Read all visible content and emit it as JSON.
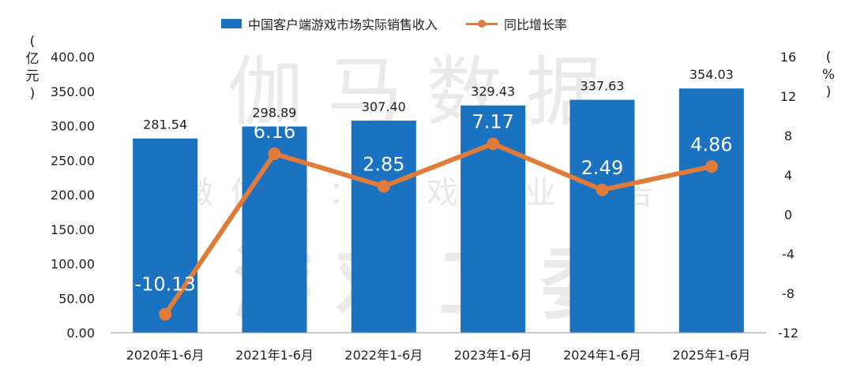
{
  "chart_data": {
    "type": "bar",
    "categories": [
      "2020年1-6月",
      "2021年1-6月",
      "2022年1-6月",
      "2023年1-6月",
      "2024年1-6月",
      "2025年1-6月"
    ],
    "series": [
      {
        "name": "中国客户端游戏市场实际销售收入",
        "type": "bar",
        "axis": "left",
        "values": [
          281.54,
          298.89,
          307.4,
          329.43,
          337.63,
          354.03
        ],
        "labels": [
          "281.54",
          "298.89",
          "307.40",
          "329.43",
          "337.63",
          "354.03"
        ],
        "color": "#1a72c0"
      },
      {
        "name": "同比增长率",
        "type": "line",
        "axis": "right",
        "values": [
          -10.13,
          6.16,
          2.85,
          7.17,
          2.49,
          4.86
        ],
        "labels": [
          "-10.13",
          "6.16",
          "2.85",
          "7.17",
          "2.49",
          "4.86"
        ],
        "color": "#e07b3a"
      }
    ],
    "yleft": {
      "unit": [
        "(",
        "亿",
        "元",
        ")"
      ],
      "ylim": [
        0,
        400
      ],
      "ticks": [
        "0.00",
        "50.00",
        "100.00",
        "150.00",
        "200.00",
        "250.00",
        "300.00",
        "350.00",
        "400.00"
      ]
    },
    "yright": {
      "unit": [
        "(",
        "%",
        ")"
      ],
      "ylim": [
        -12,
        16
      ],
      "ticks": [
        "-12",
        "-8",
        "-4",
        "0",
        "4",
        "8",
        "12",
        "16"
      ]
    },
    "grid": false,
    "legend_position": "top-center",
    "watermark": [
      "伽马数据",
      "微信号：游戏产业报告",
      "游戏工委"
    ]
  }
}
